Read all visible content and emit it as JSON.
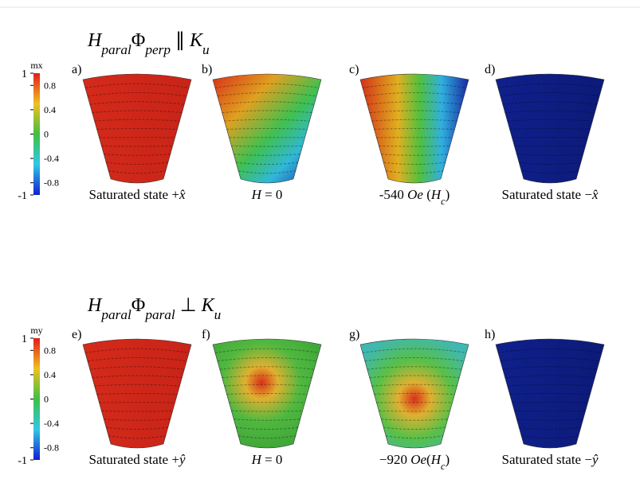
{
  "rows": [
    {
      "title": [
        {
          "text": "H",
          "italic": true
        },
        {
          "text": "paral",
          "italic": true,
          "sub": true
        },
        {
          "text": "Φ"
        },
        {
          "text": "perp",
          "italic": true,
          "sub": true
        },
        {
          "text": " ∥ "
        },
        {
          "text": "K",
          "italic": true
        },
        {
          "text": "u",
          "italic": true,
          "sub": true
        }
      ],
      "colorbar": {
        "label": "mx",
        "range": [
          -1,
          1
        ],
        "ticks": [
          1,
          0.8,
          0.4,
          0,
          -0.4,
          -0.8,
          -1
        ]
      },
      "panels": [
        {
          "label": "a)",
          "caption": [
            {
              "text": "Saturated state +"
            },
            {
              "text": "x̂",
              "italic": true
            }
          ]
        },
        {
          "label": "b)",
          "caption": [
            {
              "text": "H",
              "italic": true
            },
            {
              "text": " = 0"
            }
          ]
        },
        {
          "label": "c)",
          "caption": [
            {
              "text": "-540 "
            },
            {
              "text": "Oe",
              "italic": true
            },
            {
              "text": " ("
            },
            {
              "text": "H",
              "italic": true
            },
            {
              "text": "c",
              "italic": true,
              "sub": true
            },
            {
              "text": ")"
            }
          ]
        },
        {
          "label": "d)",
          "caption": [
            {
              "text": "Saturated state −"
            },
            {
              "text": "x̂",
              "italic": true
            }
          ]
        }
      ]
    },
    {
      "title": [
        {
          "text": "H",
          "italic": true
        },
        {
          "text": "paral",
          "italic": true,
          "sub": true
        },
        {
          "text": "Φ"
        },
        {
          "text": "paral",
          "italic": true,
          "sub": true
        },
        {
          "text": " ⊥ "
        },
        {
          "text": "K",
          "italic": true
        },
        {
          "text": "u",
          "italic": true,
          "sub": true
        }
      ],
      "colorbar": {
        "label": "my",
        "range": [
          -1,
          1
        ],
        "ticks": [
          1,
          0.8,
          0.4,
          0,
          -0.4,
          -0.8,
          -1
        ]
      },
      "panels": [
        {
          "label": "e)",
          "caption": [
            {
              "text": "Saturated state +"
            },
            {
              "text": "ŷ",
              "italic": true
            }
          ]
        },
        {
          "label": "f)",
          "caption": [
            {
              "text": "H",
              "italic": true
            },
            {
              "text": " = 0"
            }
          ]
        },
        {
          "label": "g)",
          "caption": [
            {
              "text": "−920 "
            },
            {
              "text": "Oe",
              "italic": true
            },
            {
              "text": "("
            },
            {
              "text": "H",
              "italic": true
            },
            {
              "text": "c",
              "italic": true,
              "sub": true
            },
            {
              "text": ")"
            }
          ]
        },
        {
          "label": "h)",
          "caption": [
            {
              "text": "Saturated state −"
            },
            {
              "text": "ŷ",
              "italic": true
            }
          ]
        }
      ]
    }
  ]
}
